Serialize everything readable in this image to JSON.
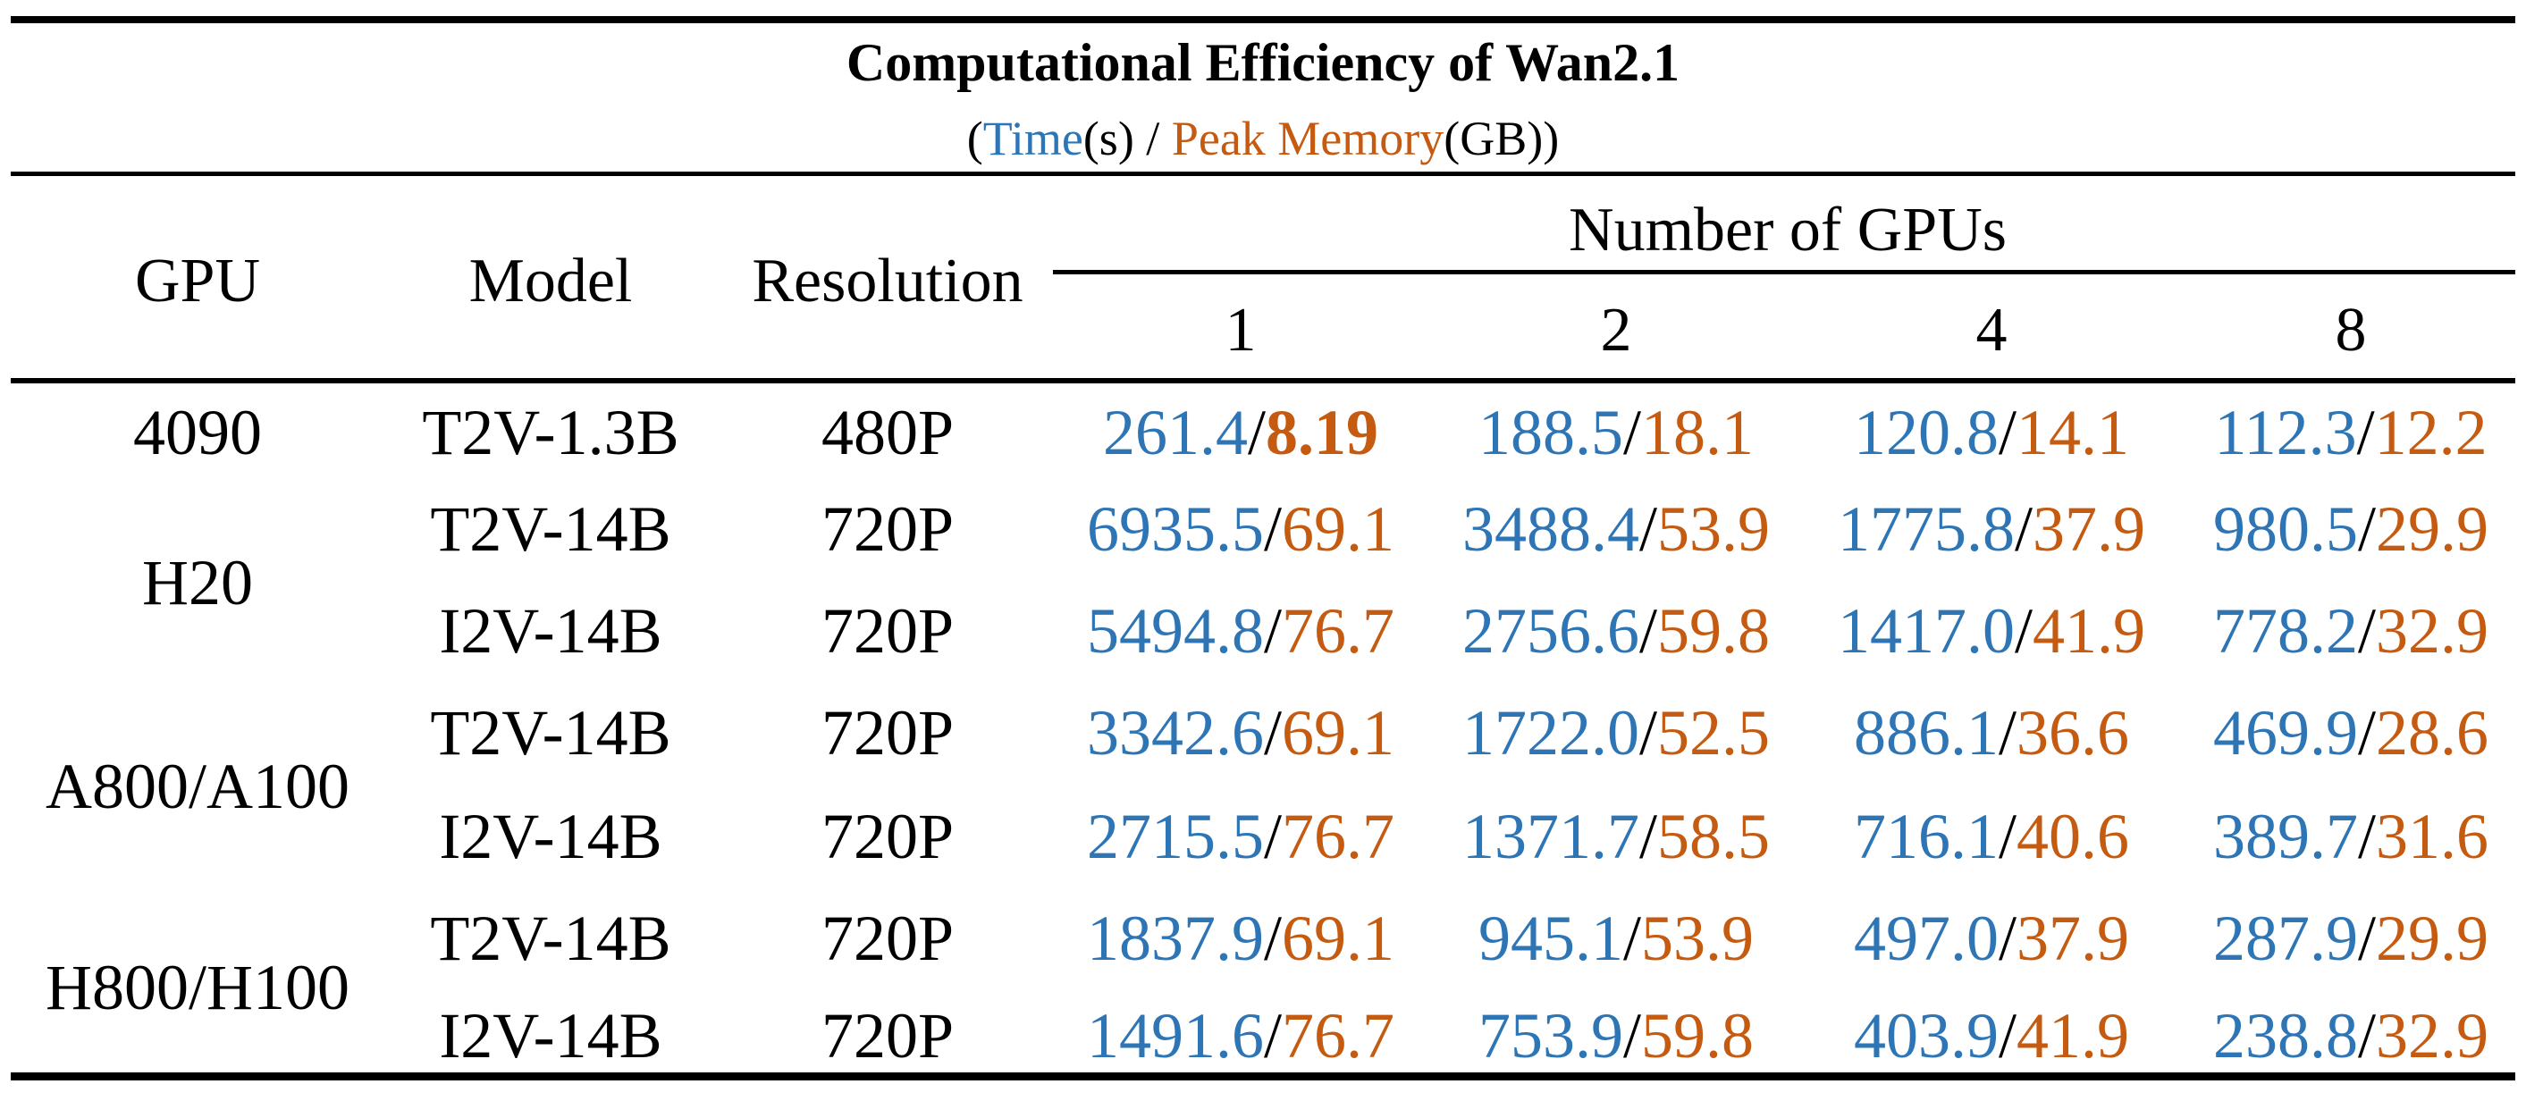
{
  "title": "Computational Efficiency of Wan2.1",
  "subtitle": {
    "open": "(",
    "time": "Time",
    "time_unit": "(s) / ",
    "memory": "Peak Memory",
    "memory_unit": "(GB))"
  },
  "colors": {
    "time": "#2E75B6",
    "memory": "#C55A11"
  },
  "headers": {
    "gpu": "GPU",
    "model": "Model",
    "resolution": "Resolution",
    "num_gpus": "Number of GPUs",
    "gpu_counts": [
      "1",
      "2",
      "4",
      "8"
    ]
  },
  "gpu_groups": [
    "4090",
    "H20",
    "A800/A100",
    "H800/H100"
  ],
  "rows": [
    {
      "model": "T2V-1.3B",
      "resolution": "480P",
      "cells": [
        {
          "time": "261.4",
          "mem": "8.19",
          "bold": true
        },
        {
          "time": "188.5",
          "mem": "18.1"
        },
        {
          "time": "120.8",
          "mem": "14.1"
        },
        {
          "time": "112.3",
          "mem": "12.2"
        }
      ]
    },
    {
      "model": "T2V-14B",
      "resolution": "720P",
      "cells": [
        {
          "time": "6935.5",
          "mem": "69.1"
        },
        {
          "time": "3488.4",
          "mem": "53.9"
        },
        {
          "time": "1775.8",
          "mem": "37.9"
        },
        {
          "time": "980.5",
          "mem": "29.9"
        }
      ]
    },
    {
      "model": "I2V-14B",
      "resolution": "720P",
      "cells": [
        {
          "time": "5494.8",
          "mem": "76.7"
        },
        {
          "time": "2756.6",
          "mem": "59.8"
        },
        {
          "time": "1417.0",
          "mem": "41.9"
        },
        {
          "time": "778.2",
          "mem": "32.9"
        }
      ]
    },
    {
      "model": "T2V-14B",
      "resolution": "720P",
      "cells": [
        {
          "time": "3342.6",
          "mem": "69.1"
        },
        {
          "time": "1722.0",
          "mem": "52.5"
        },
        {
          "time": "886.1",
          "mem": "36.6"
        },
        {
          "time": "469.9",
          "mem": "28.6"
        }
      ]
    },
    {
      "model": "I2V-14B",
      "resolution": "720P",
      "cells": [
        {
          "time": "2715.5",
          "mem": "76.7"
        },
        {
          "time": "1371.7",
          "mem": "58.5"
        },
        {
          "time": "716.1",
          "mem": "40.6"
        },
        {
          "time": "389.7",
          "mem": "31.6"
        }
      ]
    },
    {
      "model": "T2V-14B",
      "resolution": "720P",
      "cells": [
        {
          "time": "1837.9",
          "mem": "69.1"
        },
        {
          "time": "945.1",
          "mem": "53.9"
        },
        {
          "time": "497.0",
          "mem": "37.9"
        },
        {
          "time": "287.9",
          "mem": "29.9"
        }
      ]
    },
    {
      "model": "I2V-14B",
      "resolution": "720P",
      "cells": [
        {
          "time": "1491.6",
          "mem": "76.7"
        },
        {
          "time": "753.9",
          "mem": "59.8"
        },
        {
          "time": "403.9",
          "mem": "41.9"
        },
        {
          "time": "238.8",
          "mem": "32.9"
        }
      ]
    }
  ]
}
